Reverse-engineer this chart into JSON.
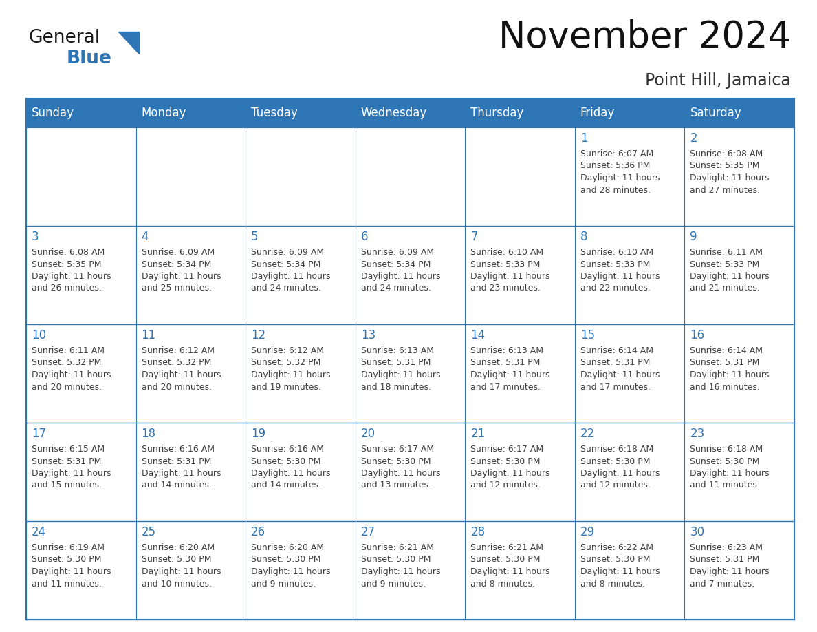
{
  "title": "November 2024",
  "subtitle": "Point Hill, Jamaica",
  "header_color": "#2E75B6",
  "header_text_color": "#FFFFFF",
  "cell_bg_color": "#FFFFFF",
  "cell_border_color": "#2E75B6",
  "alt_row_color": "#EEF3F9",
  "day_number_color": "#2E75B6",
  "cell_text_color": "#404040",
  "days_of_week": [
    "Sunday",
    "Monday",
    "Tuesday",
    "Wednesday",
    "Thursday",
    "Friday",
    "Saturday"
  ],
  "weeks": [
    [
      {
        "day": "",
        "text": ""
      },
      {
        "day": "",
        "text": ""
      },
      {
        "day": "",
        "text": ""
      },
      {
        "day": "",
        "text": ""
      },
      {
        "day": "",
        "text": ""
      },
      {
        "day": "1",
        "text": "Sunrise: 6:07 AM\nSunset: 5:36 PM\nDaylight: 11 hours\nand 28 minutes."
      },
      {
        "day": "2",
        "text": "Sunrise: 6:08 AM\nSunset: 5:35 PM\nDaylight: 11 hours\nand 27 minutes."
      }
    ],
    [
      {
        "day": "3",
        "text": "Sunrise: 6:08 AM\nSunset: 5:35 PM\nDaylight: 11 hours\nand 26 minutes."
      },
      {
        "day": "4",
        "text": "Sunrise: 6:09 AM\nSunset: 5:34 PM\nDaylight: 11 hours\nand 25 minutes."
      },
      {
        "day": "5",
        "text": "Sunrise: 6:09 AM\nSunset: 5:34 PM\nDaylight: 11 hours\nand 24 minutes."
      },
      {
        "day": "6",
        "text": "Sunrise: 6:09 AM\nSunset: 5:34 PM\nDaylight: 11 hours\nand 24 minutes."
      },
      {
        "day": "7",
        "text": "Sunrise: 6:10 AM\nSunset: 5:33 PM\nDaylight: 11 hours\nand 23 minutes."
      },
      {
        "day": "8",
        "text": "Sunrise: 6:10 AM\nSunset: 5:33 PM\nDaylight: 11 hours\nand 22 minutes."
      },
      {
        "day": "9",
        "text": "Sunrise: 6:11 AM\nSunset: 5:33 PM\nDaylight: 11 hours\nand 21 minutes."
      }
    ],
    [
      {
        "day": "10",
        "text": "Sunrise: 6:11 AM\nSunset: 5:32 PM\nDaylight: 11 hours\nand 20 minutes."
      },
      {
        "day": "11",
        "text": "Sunrise: 6:12 AM\nSunset: 5:32 PM\nDaylight: 11 hours\nand 20 minutes."
      },
      {
        "day": "12",
        "text": "Sunrise: 6:12 AM\nSunset: 5:32 PM\nDaylight: 11 hours\nand 19 minutes."
      },
      {
        "day": "13",
        "text": "Sunrise: 6:13 AM\nSunset: 5:31 PM\nDaylight: 11 hours\nand 18 minutes."
      },
      {
        "day": "14",
        "text": "Sunrise: 6:13 AM\nSunset: 5:31 PM\nDaylight: 11 hours\nand 17 minutes."
      },
      {
        "day": "15",
        "text": "Sunrise: 6:14 AM\nSunset: 5:31 PM\nDaylight: 11 hours\nand 17 minutes."
      },
      {
        "day": "16",
        "text": "Sunrise: 6:14 AM\nSunset: 5:31 PM\nDaylight: 11 hours\nand 16 minutes."
      }
    ],
    [
      {
        "day": "17",
        "text": "Sunrise: 6:15 AM\nSunset: 5:31 PM\nDaylight: 11 hours\nand 15 minutes."
      },
      {
        "day": "18",
        "text": "Sunrise: 6:16 AM\nSunset: 5:31 PM\nDaylight: 11 hours\nand 14 minutes."
      },
      {
        "day": "19",
        "text": "Sunrise: 6:16 AM\nSunset: 5:30 PM\nDaylight: 11 hours\nand 14 minutes."
      },
      {
        "day": "20",
        "text": "Sunrise: 6:17 AM\nSunset: 5:30 PM\nDaylight: 11 hours\nand 13 minutes."
      },
      {
        "day": "21",
        "text": "Sunrise: 6:17 AM\nSunset: 5:30 PM\nDaylight: 11 hours\nand 12 minutes."
      },
      {
        "day": "22",
        "text": "Sunrise: 6:18 AM\nSunset: 5:30 PM\nDaylight: 11 hours\nand 12 minutes."
      },
      {
        "day": "23",
        "text": "Sunrise: 6:18 AM\nSunset: 5:30 PM\nDaylight: 11 hours\nand 11 minutes."
      }
    ],
    [
      {
        "day": "24",
        "text": "Sunrise: 6:19 AM\nSunset: 5:30 PM\nDaylight: 11 hours\nand 11 minutes."
      },
      {
        "day": "25",
        "text": "Sunrise: 6:20 AM\nSunset: 5:30 PM\nDaylight: 11 hours\nand 10 minutes."
      },
      {
        "day": "26",
        "text": "Sunrise: 6:20 AM\nSunset: 5:30 PM\nDaylight: 11 hours\nand 9 minutes."
      },
      {
        "day": "27",
        "text": "Sunrise: 6:21 AM\nSunset: 5:30 PM\nDaylight: 11 hours\nand 9 minutes."
      },
      {
        "day": "28",
        "text": "Sunrise: 6:21 AM\nSunset: 5:30 PM\nDaylight: 11 hours\nand 8 minutes."
      },
      {
        "day": "29",
        "text": "Sunrise: 6:22 AM\nSunset: 5:30 PM\nDaylight: 11 hours\nand 8 minutes."
      },
      {
        "day": "30",
        "text": "Sunrise: 6:23 AM\nSunset: 5:31 PM\nDaylight: 11 hours\nand 7 minutes."
      }
    ]
  ],
  "logo_general_color": "#1a1a1a",
  "logo_blue_color": "#2E75B6",
  "title_fontsize": 38,
  "subtitle_fontsize": 17,
  "header_fontsize": 12,
  "day_num_fontsize": 12,
  "cell_text_fontsize": 9
}
